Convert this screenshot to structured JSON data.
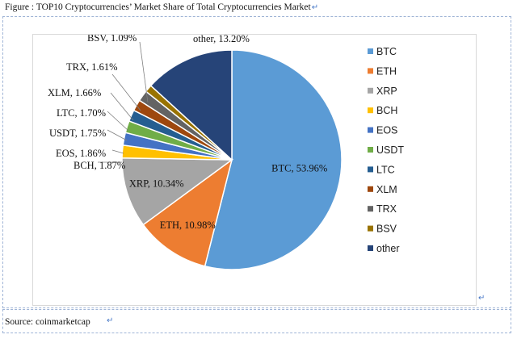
{
  "caption": {
    "text": "Figure : TOP10 Cryptocurrencies’ Market Share of Total Cryptocurrencies Market",
    "mark": "↵"
  },
  "source": {
    "text": "Source: coinmarketcap",
    "mark": "↵"
  },
  "cell_mark": "↵",
  "chart_data": {
    "type": "pie",
    "title": "",
    "unit": "%",
    "legend_position": "right",
    "slices": [
      {
        "name": "BTC",
        "value": 53.96,
        "label": "BTC, 53.96%",
        "color": "#5b9bd5"
      },
      {
        "name": "ETH",
        "value": 10.98,
        "label": "ETH, 10.98%",
        "color": "#ed7d31"
      },
      {
        "name": "XRP",
        "value": 10.34,
        "label": "XRP, 10.34%",
        "color": "#a5a5a5"
      },
      {
        "name": "BCH",
        "value": 1.87,
        "label": "BCH, 1.87%",
        "color": "#ffc000"
      },
      {
        "name": "EOS",
        "value": 1.86,
        "label": "EOS, 1.86%",
        "color": "#4472c4"
      },
      {
        "name": "USDT",
        "value": 1.75,
        "label": "USDT, 1.75%",
        "color": "#70ad47"
      },
      {
        "name": "LTC",
        "value": 1.7,
        "label": "LTC, 1.70%",
        "color": "#255e91"
      },
      {
        "name": "XLM",
        "value": 1.66,
        "label": "XLM, 1.66%",
        "color": "#9e480e"
      },
      {
        "name": "TRX",
        "value": 1.61,
        "label": "TRX, 1.61%",
        "color": "#636363"
      },
      {
        "name": "BSV",
        "value": 1.09,
        "label": "BSV, 1.09%",
        "color": "#997300"
      },
      {
        "name": "other",
        "value": 13.2,
        "label": "other, 13.20%",
        "color": "#264478"
      }
    ]
  }
}
